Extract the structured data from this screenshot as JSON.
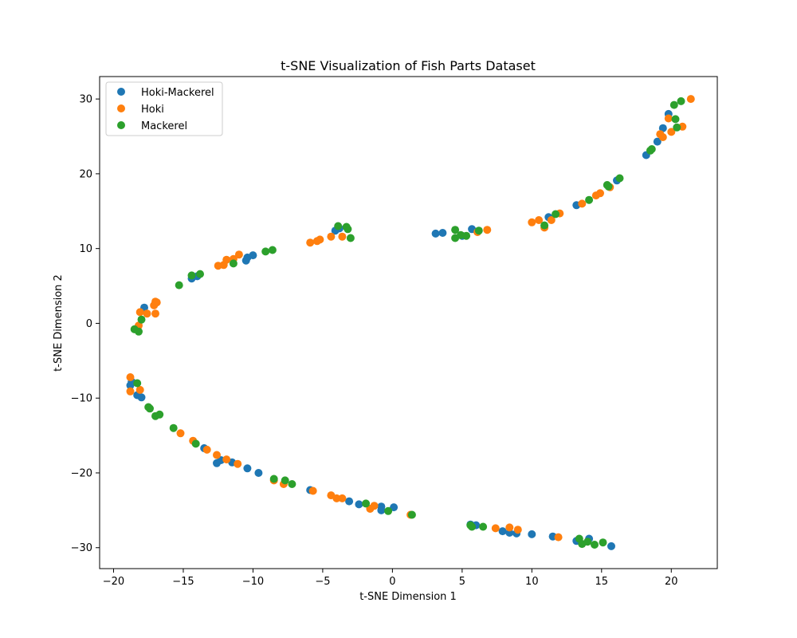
{
  "chart_data": {
    "type": "scatter",
    "title": "t-SNE Visualization of Fish Parts Dataset",
    "xlabel": "t-SNE Dimension 1",
    "ylabel": "t-SNE Dimension 2",
    "xlim": [
      -21,
      23.3
    ],
    "ylim": [
      -32.8,
      33
    ],
    "xticks": [
      -20,
      -15,
      -10,
      -5,
      0,
      5,
      10,
      15,
      20
    ],
    "yticks": [
      -30,
      -20,
      -10,
      0,
      10,
      20,
      30
    ],
    "grid": false,
    "legend_position": "top-left",
    "series": [
      {
        "name": "Hoki-Mackerel",
        "color": "#1f77b4",
        "points": [
          [
            -17.8,
            2.1
          ],
          [
            -14.4,
            6.0
          ],
          [
            -14.0,
            6.3
          ],
          [
            -10.5,
            8.4
          ],
          [
            -10.4,
            8.8
          ],
          [
            -10.0,
            9.1
          ],
          [
            -4.1,
            12.4
          ],
          [
            -3.8,
            12.7
          ],
          [
            3.1,
            12.0
          ],
          [
            3.6,
            12.1
          ],
          [
            5.7,
            12.6
          ],
          [
            5.0,
            11.7
          ],
          [
            11.2,
            14.2
          ],
          [
            13.2,
            15.8
          ],
          [
            16.1,
            19.1
          ],
          [
            18.2,
            22.5
          ],
          [
            19.0,
            24.3
          ],
          [
            19.4,
            26.1
          ],
          [
            19.8,
            28.0
          ],
          [
            -18.8,
            -8.3
          ],
          [
            -18.7,
            -7.8
          ],
          [
            -18.3,
            -9.6
          ],
          [
            -18.0,
            -9.9
          ],
          [
            -13.5,
            -16.7
          ],
          [
            -12.6,
            -18.7
          ],
          [
            -12.3,
            -18.3
          ],
          [
            -11.5,
            -18.6
          ],
          [
            -10.4,
            -19.4
          ],
          [
            -9.6,
            -20.0
          ],
          [
            -5.9,
            -22.3
          ],
          [
            -3.1,
            -23.8
          ],
          [
            -2.4,
            -24.2
          ],
          [
            -0.8,
            -24.5
          ],
          [
            -0.8,
            -25.0
          ],
          [
            0.1,
            -24.6
          ],
          [
            5.6,
            -26.9
          ],
          [
            6.0,
            -27.0
          ],
          [
            7.9,
            -27.8
          ],
          [
            8.4,
            -28.0
          ],
          [
            8.9,
            -28.1
          ],
          [
            10.0,
            -28.2
          ],
          [
            11.5,
            -28.5
          ],
          [
            13.2,
            -29.1
          ],
          [
            14.1,
            -28.8
          ],
          [
            15.7,
            -29.8
          ]
        ]
      },
      {
        "name": "Hoki",
        "color": "#ff7f0e",
        "points": [
          [
            -18.2,
            -0.3
          ],
          [
            -18.1,
            1.5
          ],
          [
            -17.6,
            1.3
          ],
          [
            -17.1,
            2.4
          ],
          [
            -17.0,
            2.9
          ],
          [
            -16.9,
            2.8
          ],
          [
            -17.0,
            1.3
          ],
          [
            -12.5,
            7.7
          ],
          [
            -12.1,
            7.8
          ],
          [
            -11.9,
            8.5
          ],
          [
            -11.4,
            8.6
          ],
          [
            -11.0,
            9.2
          ],
          [
            -5.9,
            10.8
          ],
          [
            -5.4,
            11.0
          ],
          [
            -5.2,
            11.2
          ],
          [
            -4.4,
            11.6
          ],
          [
            -3.6,
            11.6
          ],
          [
            6.1,
            12.2
          ],
          [
            6.8,
            12.5
          ],
          [
            10.0,
            13.5
          ],
          [
            10.5,
            13.8
          ],
          [
            10.9,
            12.8
          ],
          [
            11.4,
            13.8
          ],
          [
            12.0,
            14.7
          ],
          [
            13.6,
            16.0
          ],
          [
            14.6,
            17.1
          ],
          [
            14.9,
            17.4
          ],
          [
            15.6,
            18.2
          ],
          [
            19.2,
            25.3
          ],
          [
            19.4,
            24.9
          ],
          [
            19.8,
            27.4
          ],
          [
            20.0,
            25.6
          ],
          [
            20.8,
            26.3
          ],
          [
            21.4,
            30.0
          ],
          [
            -18.8,
            -7.2
          ],
          [
            -18.8,
            -9.1
          ],
          [
            -18.1,
            -8.9
          ],
          [
            -15.2,
            -14.7
          ],
          [
            -14.3,
            -15.7
          ],
          [
            -13.3,
            -16.9
          ],
          [
            -12.6,
            -17.6
          ],
          [
            -11.9,
            -18.2
          ],
          [
            -11.1,
            -18.8
          ],
          [
            -8.5,
            -21.0
          ],
          [
            -7.8,
            -21.5
          ],
          [
            -5.7,
            -22.4
          ],
          [
            -4.4,
            -23.0
          ],
          [
            -4.0,
            -23.4
          ],
          [
            -3.6,
            -23.4
          ],
          [
            -1.6,
            -24.8
          ],
          [
            -1.3,
            -24.4
          ],
          [
            1.3,
            -25.6
          ],
          [
            7.4,
            -27.4
          ],
          [
            8.4,
            -27.3
          ],
          [
            9.0,
            -27.6
          ],
          [
            11.9,
            -28.6
          ]
        ]
      },
      {
        "name": "Mackerel",
        "color": "#2ca02c",
        "points": [
          [
            -18.5,
            -0.8
          ],
          [
            -18.2,
            -1.1
          ],
          [
            -18.0,
            0.5
          ],
          [
            -15.3,
            5.1
          ],
          [
            -14.4,
            6.4
          ],
          [
            -13.8,
            6.6
          ],
          [
            -11.4,
            8.0
          ],
          [
            -9.1,
            9.6
          ],
          [
            -8.6,
            9.8
          ],
          [
            -3.9,
            13.0
          ],
          [
            -3.3,
            12.9
          ],
          [
            -3.2,
            12.6
          ],
          [
            -3.0,
            11.4
          ],
          [
            4.5,
            12.5
          ],
          [
            4.5,
            11.4
          ],
          [
            4.9,
            11.8
          ],
          [
            5.3,
            11.7
          ],
          [
            6.2,
            12.4
          ],
          [
            10.9,
            13.1
          ],
          [
            11.7,
            14.6
          ],
          [
            14.1,
            16.5
          ],
          [
            15.4,
            18.5
          ],
          [
            15.5,
            18.3
          ],
          [
            16.3,
            19.4
          ],
          [
            18.5,
            23.1
          ],
          [
            18.6,
            23.3
          ],
          [
            20.2,
            29.2
          ],
          [
            20.3,
            27.3
          ],
          [
            20.4,
            26.2
          ],
          [
            20.7,
            29.7
          ],
          [
            -18.3,
            -8.0
          ],
          [
            -17.5,
            -11.2
          ],
          [
            -17.4,
            -11.4
          ],
          [
            -17.0,
            -12.4
          ],
          [
            -16.7,
            -12.2
          ],
          [
            -15.7,
            -14.0
          ],
          [
            -14.1,
            -16.1
          ],
          [
            -8.5,
            -20.8
          ],
          [
            -7.7,
            -21.0
          ],
          [
            -7.2,
            -21.5
          ],
          [
            -1.9,
            -24.1
          ],
          [
            -0.3,
            -25.1
          ],
          [
            1.4,
            -25.6
          ],
          [
            5.6,
            -27.0
          ],
          [
            5.7,
            -27.2
          ],
          [
            6.5,
            -27.2
          ],
          [
            13.4,
            -28.8
          ],
          [
            13.6,
            -29.5
          ],
          [
            14.0,
            -29.2
          ],
          [
            14.5,
            -29.6
          ],
          [
            15.1,
            -29.3
          ]
        ]
      }
    ]
  }
}
